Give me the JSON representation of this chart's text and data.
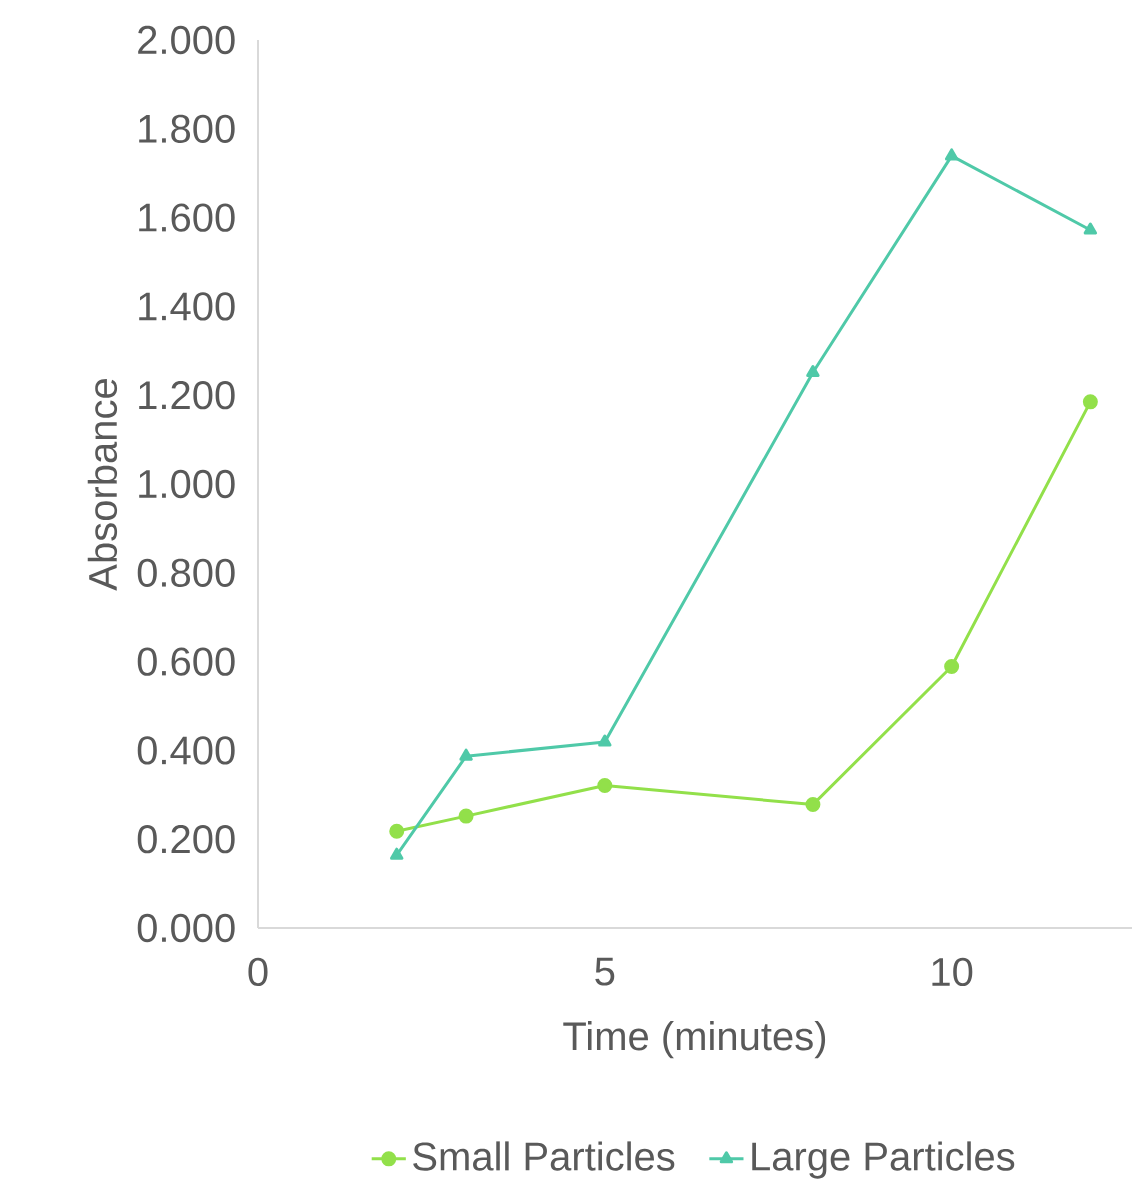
{
  "chart_data": {
    "type": "line",
    "xlabel": "Time (minutes)",
    "ylabel": "Absorbance",
    "xlim": [
      0,
      12.6
    ],
    "xticks": [
      0,
      5,
      10
    ],
    "ylim": [
      0,
      2
    ],
    "yticks": [
      {
        "value": 0,
        "label": "0.000"
      },
      {
        "value": 0.2,
        "label": "0.200"
      },
      {
        "value": 0.4,
        "label": "0.400"
      },
      {
        "value": 0.6,
        "label": "0.600"
      },
      {
        "value": 0.8,
        "label": "0.800"
      },
      {
        "value": 1.0,
        "label": "1.000"
      },
      {
        "value": 1.2,
        "label": "1.200"
      },
      {
        "value": 1.4,
        "label": "1.400"
      },
      {
        "value": 1.6,
        "label": "1.600"
      },
      {
        "value": 1.8,
        "label": "1.800"
      },
      {
        "value": 2.0,
        "label": "2.000"
      }
    ],
    "x": [
      2,
      3,
      5,
      8,
      10,
      12
    ],
    "series": [
      {
        "name": "Small Particles",
        "color": "#92e04a",
        "marker": "circle",
        "values": [
          0.218,
          0.252,
          0.321,
          0.278,
          0.589,
          1.185
        ]
      },
      {
        "name": "Large Particles",
        "color": "#4fc9a8",
        "marker": "triangle",
        "values": [
          0.164,
          0.387,
          0.419,
          1.251,
          1.739,
          1.572
        ]
      }
    ],
    "grid": false,
    "legend": "bottom",
    "line_style": "solid"
  }
}
